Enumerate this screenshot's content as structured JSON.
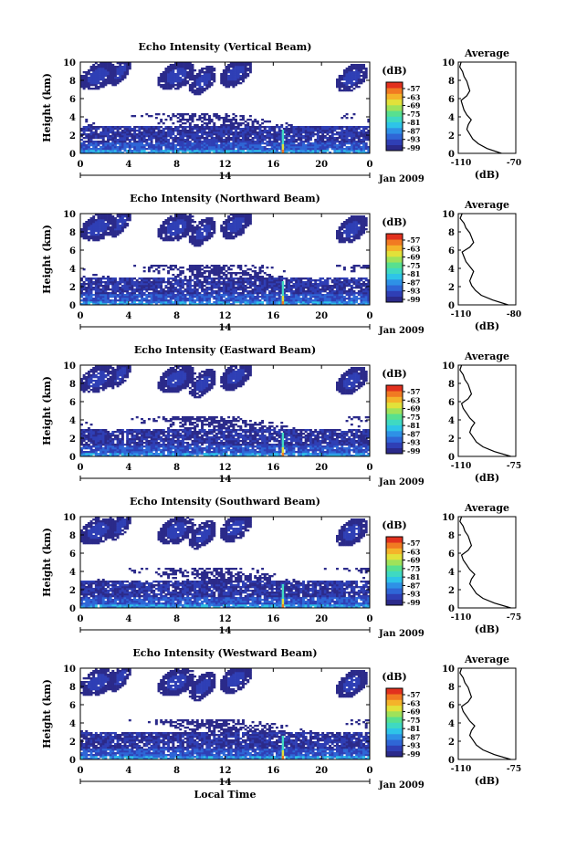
{
  "chart_data": [
    {
      "type": "heatmap",
      "title": "Echo Intensity (Vertical Beam)",
      "ylabel": "Height (km)",
      "yticks": [
        "0",
        "2",
        "4",
        "6",
        "8",
        "10"
      ],
      "xticks": [
        "0",
        "4",
        "8",
        "12",
        "16",
        "20",
        "0"
      ],
      "date_tick": "14",
      "date_label": "Jan 2009",
      "colorbar_unit": "(dB)",
      "colorbar_ticks": [
        "-57",
        "-63",
        "-69",
        "-75",
        "-81",
        "-87",
        "-93",
        "-99"
      ],
      "average": {
        "title": "Average",
        "xlabel": "(dB)",
        "xticks": [
          "-110",
          "-70"
        ],
        "profile": [
          -80,
          -90,
          -96,
          -100,
          -102,
          -104,
          -103,
          -101,
          -104,
          -106,
          -107,
          -108,
          -104,
          -102,
          -103,
          -104,
          -106,
          -107,
          -109,
          -108
        ]
      }
    },
    {
      "type": "heatmap",
      "title": "Echo Intensity (Northward Beam)",
      "ylabel": "Height (km)",
      "yticks": [
        "0",
        "2",
        "4",
        "6",
        "8",
        "10"
      ],
      "xticks": [
        "0",
        "4",
        "8",
        "12",
        "16",
        "20",
        "0"
      ],
      "date_tick": "14",
      "date_label": "Jan 2009",
      "colorbar_unit": "(dB)",
      "colorbar_ticks": [
        "-57",
        "-63",
        "-69",
        "-75",
        "-81",
        "-87",
        "-93",
        "-99"
      ],
      "average": {
        "title": "Average",
        "xlabel": "(dB)",
        "xticks": [
          "-110",
          "-80"
        ],
        "profile": [
          -84,
          -92,
          -98,
          -101,
          -103,
          -104,
          -103,
          -102,
          -104,
          -106,
          -107,
          -108,
          -104,
          -102,
          -103,
          -104,
          -106,
          -107,
          -109,
          -108
        ]
      }
    },
    {
      "type": "heatmap",
      "title": "Echo Intensity (Eastward Beam)",
      "ylabel": "Height (km)",
      "yticks": [
        "0",
        "2",
        "4",
        "6",
        "8",
        "10"
      ],
      "xticks": [
        "0",
        "4",
        "8",
        "12",
        "16",
        "20",
        "0"
      ],
      "date_tick": "14",
      "date_label": "Jan 2009",
      "colorbar_unit": "(dB)",
      "colorbar_ticks": [
        "-57",
        "-63",
        "-69",
        "-75",
        "-81",
        "-87",
        "-93",
        "-99"
      ],
      "average": {
        "title": "Average",
        "xlabel": "(dB)",
        "xticks": [
          "-110",
          "-75"
        ],
        "profile": [
          -78,
          -88,
          -95,
          -99,
          -101,
          -103,
          -102,
          -100,
          -103,
          -105,
          -107,
          -108,
          -104,
          -102,
          -103,
          -104,
          -106,
          -107,
          -109,
          -108
        ]
      }
    },
    {
      "type": "heatmap",
      "title": "Echo Intensity (Southward Beam)",
      "ylabel": "Height (km)",
      "yticks": [
        "0",
        "2",
        "4",
        "6",
        "8",
        "10"
      ],
      "xticks": [
        "0",
        "4",
        "8",
        "12",
        "16",
        "20",
        "0"
      ],
      "date_tick": "14",
      "date_label": "Jan 2009",
      "colorbar_unit": "(dB)",
      "colorbar_ticks": [
        "-57",
        "-63",
        "-69",
        "-75",
        "-81",
        "-87",
        "-93",
        "-99"
      ],
      "average": {
        "title": "Average",
        "xlabel": "(dB)",
        "xticks": [
          "-110",
          "-75"
        ],
        "profile": [
          -78,
          -88,
          -95,
          -99,
          -101,
          -103,
          -102,
          -100,
          -103,
          -105,
          -107,
          -108,
          -104,
          -102,
          -103,
          -104,
          -106,
          -107,
          -109,
          -108
        ]
      }
    },
    {
      "type": "heatmap",
      "title": "Echo Intensity (Westward Beam)",
      "ylabel": "Height (km)",
      "yticks": [
        "0",
        "2",
        "4",
        "6",
        "8",
        "10"
      ],
      "xticks": [
        "0",
        "4",
        "8",
        "12",
        "16",
        "20",
        "0"
      ],
      "date_tick": "14",
      "date_label": "Jan 2009",
      "xlabel": "Local Time",
      "colorbar_unit": "(dB)",
      "colorbar_ticks": [
        "-57",
        "-63",
        "-69",
        "-75",
        "-81",
        "-87",
        "-93",
        "-99"
      ],
      "average": {
        "title": "Average",
        "xlabel": "(dB)",
        "xticks": [
          "-110",
          "-75"
        ],
        "profile": [
          -78,
          -88,
          -95,
          -99,
          -101,
          -103,
          -102,
          -100,
          -103,
          -105,
          -107,
          -108,
          -104,
          -102,
          -103,
          -104,
          -106,
          -107,
          -109,
          -108
        ]
      }
    }
  ],
  "colormap": [
    "#2b2a8a",
    "#2f3fb5",
    "#2f66d6",
    "#2e91e6",
    "#2ec4e8",
    "#3fd9c2",
    "#58e08f",
    "#9fe25a",
    "#e2e13a",
    "#f4b32a",
    "#f17a22",
    "#e2311e"
  ]
}
